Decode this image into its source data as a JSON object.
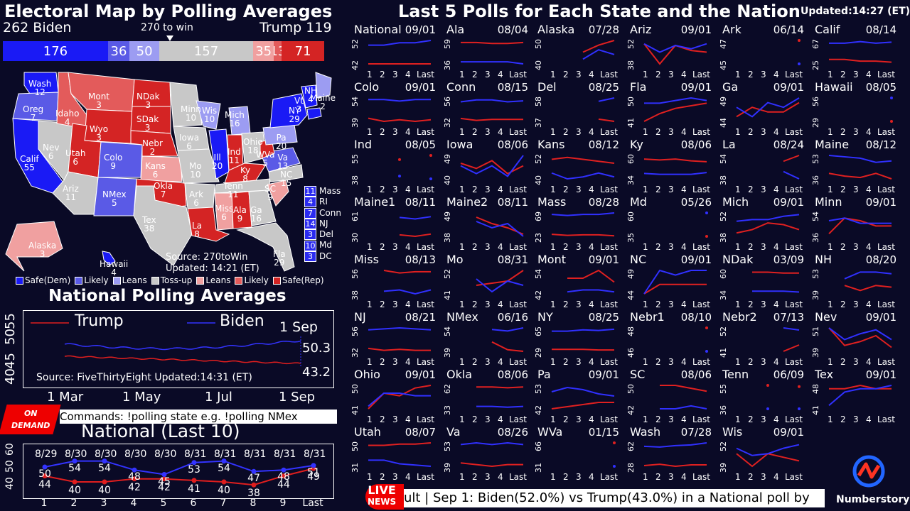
{
  "header": {
    "title": "Electoral Map by Polling Averages",
    "biden_label": "262  Biden",
    "trump_label": "Trump  119",
    "to_win": "270 to win"
  },
  "ev_bar": [
    {
      "label": "176",
      "value": 176,
      "color": "#1a1af5"
    },
    {
      "label": "36",
      "value": 36,
      "color": "#5a5ae6"
    },
    {
      "label": "50",
      "value": 50,
      "color": "#9c9cf2"
    },
    {
      "label": "157",
      "value": 157,
      "color": "#c8c8c8"
    },
    {
      "label": "35",
      "value": 35,
      "color": "#f0a0a0"
    },
    {
      "label": "13",
      "value": 13,
      "color": "#e35b5b"
    },
    {
      "label": "71",
      "value": 71,
      "color": "#d42424"
    }
  ],
  "map_states": [
    {
      "label": "Wash",
      "ev": "12"
    },
    {
      "label": "Oreg",
      "ev": "7"
    },
    {
      "label": "Calif",
      "ev": "55"
    },
    {
      "label": "Nev",
      "ev": "6"
    },
    {
      "label": "Idaho",
      "ev": "4"
    },
    {
      "label": "Mont",
      "ev": "3"
    },
    {
      "label": "Wyo",
      "ev": "3"
    },
    {
      "label": "Utah",
      "ev": "6"
    },
    {
      "label": "Colo",
      "ev": "9"
    },
    {
      "label": "Ariz",
      "ev": "11"
    },
    {
      "label": "NMex",
      "ev": "5"
    },
    {
      "label": "NDak",
      "ev": "3"
    },
    {
      "label": "SDak",
      "ev": "3"
    },
    {
      "label": "Nebr",
      "ev": "2"
    },
    {
      "label": "Kans",
      "ev": "6"
    },
    {
      "label": "Okla",
      "ev": "7"
    },
    {
      "label": "Tex",
      "ev": "38"
    },
    {
      "label": "Minn",
      "ev": "10"
    },
    {
      "label": "Iowa",
      "ev": "6"
    },
    {
      "label": "Mo",
      "ev": "10"
    },
    {
      "label": "Ark",
      "ev": "6"
    },
    {
      "label": "La",
      "ev": "8"
    },
    {
      "label": "Wis",
      "ev": "10"
    },
    {
      "label": "Ill",
      "ev": "20"
    },
    {
      "label": "Mich",
      "ev": "16"
    },
    {
      "label": "Ind",
      "ev": "11"
    },
    {
      "label": "Ohio",
      "ev": "18"
    },
    {
      "label": "Ky",
      "ev": "8"
    },
    {
      "label": "Tenn",
      "ev": "11"
    },
    {
      "label": "Miss",
      "ev": "6"
    },
    {
      "label": "Ala",
      "ev": "9"
    },
    {
      "label": "Ga",
      "ev": "16"
    },
    {
      "label": "Fla",
      "ev": "29"
    },
    {
      "label": "SC",
      "ev": "9"
    },
    {
      "label": "NC",
      "ev": "15"
    },
    {
      "label": "Va",
      "ev": "13"
    },
    {
      "label": "WVa",
      "ev": "5"
    },
    {
      "label": "Pa",
      "ev": "20"
    },
    {
      "label": "NY",
      "ev": "29"
    },
    {
      "label": "Vt",
      "ev": "3"
    },
    {
      "label": "NH",
      "ev": "4"
    },
    {
      "label": "Maine",
      "ev": "2"
    },
    {
      "label": "Alaska",
      "ev": "3"
    },
    {
      "label": "Hawaii",
      "ev": "4"
    }
  ],
  "small_states": [
    {
      "ev": "11",
      "label": "Mass"
    },
    {
      "ev": "4",
      "label": "RI"
    },
    {
      "ev": "7",
      "label": "Conn"
    },
    {
      "ev": "14",
      "label": "NJ"
    },
    {
      "ev": "3",
      "label": "Del"
    },
    {
      "ev": "10",
      "label": "Md"
    },
    {
      "ev": "3",
      "label": "DC"
    }
  ],
  "map_source": {
    "line1": "Source: 270toWin",
    "line2": "Updated: 14:21 (ET)"
  },
  "legend": [
    {
      "label": "Safe(Dem)",
      "color": "#1a1af5"
    },
    {
      "label": "Likely",
      "color": "#5a5ae6"
    },
    {
      "label": "Leans",
      "color": "#9c9cf2"
    },
    {
      "label": "Toss-up",
      "color": "#c8c8c8"
    },
    {
      "label": "Leans",
      "color": "#f0a0a0"
    },
    {
      "label": "Likely",
      "color": "#e35b5b"
    },
    {
      "label": "Safe(Rep)",
      "color": "#d42424"
    }
  ],
  "national": {
    "title": "National Polling Averages",
    "trump_label": "Trump",
    "biden_label": "Biden",
    "date_label": "1 Sep",
    "biden_value": "50.3",
    "trump_value": "43.2",
    "source": "Source: FiveThirtyEight   Updated:14:31 (ET)",
    "y_ticks": [
      "40",
      "45",
      "50",
      "55"
    ],
    "x_ticks": [
      "1 Mar",
      "1 May",
      "1 Jul",
      "1 Sep"
    ]
  },
  "ondemand": {
    "line1": "ON",
    "line2": "DEMAND",
    "commands": "Commands: !polling state e.g. !polling NMex"
  },
  "last10": {
    "title": "National (Last 10)",
    "dates": [
      "8/29",
      "8/30",
      "8/30",
      "8/30",
      "8/30",
      "8/31",
      "8/31",
      "8/31",
      "8/31",
      "8/31"
    ],
    "x_ticks": [
      "1",
      "2",
      "3",
      "4",
      "5",
      "6",
      "7",
      "8",
      "9",
      "Last"
    ],
    "y_ticks": [
      "40",
      "50",
      "60"
    ],
    "biden": [
      "50",
      "54",
      "54",
      "48",
      "45",
      "53",
      "54",
      "47",
      "48",
      "51"
    ],
    "trump": [
      "44",
      "40",
      "40",
      "42",
      "42",
      "41",
      "40",
      "38",
      "44",
      "49"
    ]
  },
  "right": {
    "title": "Last 5 Polls for Each State and the Nation",
    "updated": "Updated:14:27 (ET)"
  },
  "tiles": [
    {
      "name": "National",
      "date": "09/01",
      "ylo": "42",
      "yhi": "52",
      "b": [
        50,
        50,
        51,
        51,
        52
      ],
      "t": [
        42,
        42,
        42,
        42,
        42
      ]
    },
    {
      "name": "Ala",
      "date": "08/04",
      "ylo": "36",
      "yhi": "59",
      "b": [
        38,
        38,
        38,
        38,
        36
      ],
      "t": [
        57,
        57,
        56,
        56,
        57
      ]
    },
    {
      "name": "Alaska",
      "date": "07/28",
      "ylo": "40",
      "yhi": "50",
      "b": [
        null,
        null,
        42,
        46,
        44
      ],
      "t": [
        null,
        null,
        45,
        48,
        50
      ]
    },
    {
      "name": "Ariz",
      "date": "09/01",
      "ylo": "38",
      "yhi": "52",
      "b": [
        50,
        45,
        49,
        47,
        50
      ],
      "t": [
        50,
        38,
        49,
        46,
        45
      ]
    },
    {
      "name": "Ark",
      "date": "06/14",
      "ylo": "45",
      "yhi": "47",
      "b": [
        null,
        null,
        null,
        null,
        45
      ],
      "t": [
        null,
        null,
        null,
        null,
        47
      ]
    },
    {
      "name": "Calif",
      "date": "08/14",
      "ylo": "25",
      "yhi": "67",
      "b": [
        62,
        62,
        65,
        62,
        64
      ],
      "t": [
        33,
        33,
        30,
        30,
        28
      ]
    },
    {
      "name": "Colo",
      "date": "09/01",
      "ylo": "39",
      "yhi": "54",
      "b": [
        53,
        53,
        52,
        53,
        53
      ],
      "t": [
        41,
        39,
        40,
        39,
        40
      ]
    },
    {
      "name": "Conn",
      "date": "08/15",
      "ylo": "32",
      "yhi": "56",
      "b": [
        52,
        54,
        54,
        52,
        53
      ],
      "t": [
        35,
        33,
        34,
        34,
        34
      ]
    },
    {
      "name": "Del",
      "date": "08/25",
      "ylo": "37",
      "yhi": "58",
      "b": [
        null,
        null,
        null,
        55,
        58
      ],
      "t": [
        null,
        null,
        null,
        39,
        37
      ]
    },
    {
      "name": "Fla",
      "date": "09/01",
      "ylo": "41",
      "yhi": "50",
      "b": [
        48,
        48,
        49,
        50,
        49
      ],
      "t": [
        41,
        44,
        46,
        47,
        48
      ]
    },
    {
      "name": "Ga",
      "date": "09/01",
      "ylo": "44",
      "yhi": "49",
      "b": [
        47,
        45,
        48,
        47,
        49
      ],
      "t": [
        45,
        47,
        46,
        46,
        48
      ]
    },
    {
      "name": "Hawaii",
      "date": "08/05",
      "ylo": "29",
      "yhi": "56",
      "b": [
        null,
        null,
        null,
        null,
        56
      ],
      "t": [
        null,
        null,
        null,
        null,
        29
      ]
    },
    {
      "name": "Ind",
      "date": "08/05",
      "ylo": "38",
      "yhi": "55",
      "b": [
        null,
        null,
        40,
        null,
        38
      ],
      "t": [
        null,
        null,
        52,
        null,
        55
      ]
    },
    {
      "name": "Iowa",
      "date": "08/06",
      "ylo": "40",
      "yhi": "49",
      "b": [
        45,
        42,
        45,
        41,
        49
      ],
      "t": [
        46,
        44,
        47,
        42,
        45
      ]
    },
    {
      "name": "Kans",
      "date": "08/12",
      "ylo": "40",
      "yhi": "52",
      "b": [
        43,
        40,
        41,
        43,
        41
      ],
      "t": [
        50,
        51,
        50,
        49,
        48
      ]
    },
    {
      "name": "Ky",
      "date": "08/06",
      "ylo": "34",
      "yhi": "60",
      "b": [
        40,
        39,
        39,
        39,
        41
      ],
      "t": [
        56,
        55,
        56,
        54,
        53
      ]
    },
    {
      "name": "La",
      "date": "08/24",
      "ylo": "38",
      "yhi": "54",
      "b": [
        null,
        null,
        null,
        43,
        38
      ],
      "t": [
        null,
        null,
        null,
        50,
        54
      ]
    },
    {
      "name": "Maine",
      "date": "08/12",
      "ylo": "36",
      "yhi": "53",
      "b": [
        53,
        52,
        51,
        48,
        49
      ],
      "t": [
        40,
        38,
        37,
        40,
        36
      ]
    },
    {
      "name": "Maine1",
      "date": "08/11",
      "ylo": "30",
      "yhi": "61",
      "b": [
        null,
        null,
        55,
        53,
        56
      ],
      "t": [
        null,
        null,
        32,
        30,
        33
      ]
    },
    {
      "name": "Maine2",
      "date": "08/11",
      "ylo": "38",
      "yhi": "49",
      "b": [
        null,
        45,
        42,
        44,
        38
      ],
      "t": [
        null,
        47,
        44,
        42,
        39
      ]
    },
    {
      "name": "Mass",
      "date": "08/28",
      "ylo": "23",
      "yhi": "69",
      "b": [
        66,
        64,
        66,
        66,
        69
      ],
      "t": [
        27,
        25,
        26,
        26,
        24
      ]
    },
    {
      "name": "Md",
      "date": "05/26",
      "ylo": "35",
      "yhi": "60",
      "b": [
        null,
        null,
        null,
        null,
        60
      ],
      "t": [
        null,
        null,
        null,
        null,
        35
      ]
    },
    {
      "name": "Mich",
      "date": "09/01",
      "ylo": "38",
      "yhi": "52",
      "b": [
        47,
        48,
        48,
        50,
        51
      ],
      "t": [
        40,
        42,
        46,
        45,
        42
      ]
    },
    {
      "name": "Minn",
      "date": "09/01",
      "ylo": "36",
      "yhi": "54",
      "b": [
        48,
        50,
        46,
        46,
        46
      ],
      "t": [
        38,
        50,
        48,
        44,
        44
      ]
    },
    {
      "name": "Miss",
      "date": "08/13",
      "ylo": "38",
      "yhi": "56",
      "b": [
        null,
        40,
        41,
        38,
        41
      ],
      "t": [
        null,
        56,
        54,
        55,
        55
      ]
    },
    {
      "name": "Mo",
      "date": "08/31",
      "ylo": "41",
      "yhi": "52",
      "b": [
        null,
        48,
        42,
        47,
        45
      ],
      "t": [
        null,
        45,
        46,
        47,
        52
      ]
    },
    {
      "name": "Mont",
      "date": "09/01",
      "ylo": "42",
      "yhi": "54",
      "b": [
        null,
        43,
        44,
        44,
        43
      ],
      "t": [
        null,
        50,
        50,
        54,
        48
      ]
    },
    {
      "name": "NC",
      "date": "09/01",
      "ylo": "44",
      "yhi": "49",
      "b": [
        44,
        49,
        48,
        49,
        49
      ],
      "t": [
        44,
        46,
        46,
        46,
        46
      ]
    },
    {
      "name": "NDak",
      "date": "03/09",
      "ylo": "34",
      "yhi": "60",
      "b": [
        null,
        37,
        37,
        37,
        36
      ],
      "t": [
        null,
        58,
        58,
        57,
        57
      ]
    },
    {
      "name": "NH",
      "date": "08/20",
      "ylo": "39",
      "yhi": "53",
      "b": [
        null,
        48,
        52,
        52,
        51
      ],
      "t": [
        null,
        44,
        41,
        44,
        43
      ]
    },
    {
      "name": "NJ",
      "date": "08/21",
      "ylo": "32",
      "yhi": "56",
      "b": [
        54,
        55,
        56,
        55,
        54
      ],
      "t": [
        35,
        33,
        34,
        33,
        33
      ]
    },
    {
      "name": "NMex",
      "date": "06/16",
      "ylo": "39",
      "yhi": "54",
      "b": [
        null,
        null,
        53,
        52,
        54
      ],
      "t": [
        null,
        null,
        45,
        40,
        39
      ]
    },
    {
      "name": "NY",
      "date": "08/25",
      "ylo": "29",
      "yhi": "65",
      "b": [
        60,
        60,
        62,
        61,
        63
      ],
      "t": [
        32,
        32,
        32,
        31,
        31
      ]
    },
    {
      "name": "Nebr1",
      "date": "08/10",
      "ylo": "46",
      "yhi": "48",
      "b": [
        null,
        null,
        null,
        null,
        46
      ],
      "t": [
        null,
        null,
        null,
        null,
        48
      ]
    },
    {
      "name": "Nebr2",
      "date": "07/13",
      "ylo": "41",
      "yhi": "52",
      "b": [
        null,
        null,
        null,
        52,
        51
      ],
      "t": [
        null,
        null,
        null,
        41,
        44
      ]
    },
    {
      "name": "Nev",
      "date": "09/01",
      "ylo": "39",
      "yhi": "51",
      "b": [
        51,
        45,
        48,
        50,
        45
      ],
      "t": [
        51,
        42,
        44,
        47,
        41
      ]
    },
    {
      "name": "Ohio",
      "date": "09/01",
      "ylo": "41",
      "yhi": "50",
      "b": [
        42,
        47,
        47,
        46,
        46
      ],
      "t": [
        41,
        47,
        46,
        49,
        50
      ]
    },
    {
      "name": "Okla",
      "date": "08/06",
      "ylo": "33",
      "yhi": "62",
      "b": [
        null,
        36,
        36,
        35,
        36
      ],
      "t": [
        null,
        60,
        60,
        59,
        60
      ]
    },
    {
      "name": "Pa",
      "date": "09/01",
      "ylo": "42",
      "yhi": "53",
      "b": [
        50,
        52,
        51,
        49,
        48
      ],
      "t": [
        42,
        43,
        44,
        45,
        45
      ]
    },
    {
      "name": "SC",
      "date": "08/06",
      "ylo": "42",
      "yhi": "50",
      "b": [
        null,
        42,
        42,
        43,
        42
      ],
      "t": [
        null,
        50,
        50,
        49,
        48
      ]
    },
    {
      "name": "Tenn",
      "date": "06/09",
      "ylo": "36",
      "yhi": "55",
      "b": [
        null,
        null,
        36,
        null,
        36
      ],
      "t": [
        null,
        null,
        55,
        null,
        54
      ]
    },
    {
      "name": "Tex",
      "date": "09/01",
      "ylo": "41",
      "yhi": "48",
      "b": [
        42,
        46,
        47,
        47,
        48
      ],
      "t": [
        47,
        47,
        48,
        47,
        47
      ]
    },
    {
      "name": "Utah",
      "date": "08/07",
      "ylo": "31",
      "yhi": "50",
      "b": [
        36,
        36,
        33,
        32,
        31
      ],
      "t": [
        48,
        48,
        49,
        49,
        50
      ]
    },
    {
      "name": "Va",
      "date": "08/26",
      "ylo": "39",
      "yhi": "53",
      "b": [
        52,
        53,
        52,
        53,
        52
      ],
      "t": [
        41,
        40,
        39,
        40,
        40
      ]
    },
    {
      "name": "WVa",
      "date": "01/15",
      "ylo": "31",
      "yhi": "66",
      "b": [
        null,
        null,
        null,
        null,
        31
      ],
      "t": [
        null,
        null,
        null,
        null,
        66
      ]
    },
    {
      "name": "Wash",
      "date": "07/28",
      "ylo": "28",
      "yhi": "62",
      "b": [
        57,
        56,
        58,
        59,
        62
      ],
      "t": [
        29,
        31,
        28,
        30,
        30
      ]
    },
    {
      "name": "Wis",
      "date": "09/01",
      "ylo": "39",
      "yhi": "52",
      "b": [
        49,
        45,
        46,
        49,
        51
      ],
      "t": [
        46,
        39,
        46,
        44,
        42
      ]
    }
  ],
  "ticker": {
    "badge_line1": "LIVE",
    "badge_line2": "NEWS",
    "text": "ult | Sep 1: Biden(52.0%) vs Trump(43.0%) in a National poll by"
  },
  "brand": "Numberstory"
}
